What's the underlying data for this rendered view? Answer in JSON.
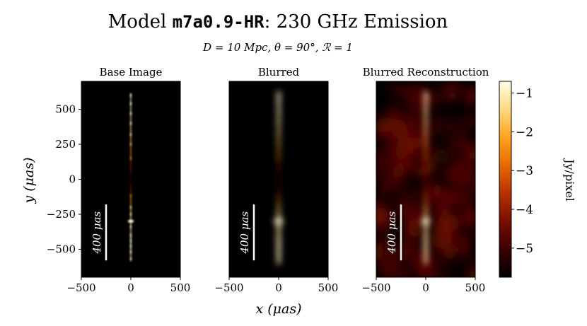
{
  "title": {
    "prefix": "Model ",
    "model": "m7a0.9-HR",
    "suffix": ": 230 GHz Emission"
  },
  "subtitle": "D = 10 Mpc, θ = 90°, ℛ = 1",
  "colors": {
    "background": "#ffffff",
    "panel_background": "#000000",
    "scale_bar": "#ffffff",
    "colormap": [
      "#000000",
      "#3a0000",
      "#7a0d00",
      "#b83000",
      "#e66a00",
      "#ffa320",
      "#ffd980",
      "#ffffe8"
    ]
  },
  "chart_data": {
    "type": "heatmap",
    "colormap": "afmhot",
    "xlabel": "x (μas)",
    "ylabel": "y (μas)",
    "xlim": [
      -500,
      500
    ],
    "ylim": [
      -700,
      700
    ],
    "x_ticks": [
      -500,
      0,
      500
    ],
    "x_tick_labels": [
      "−500",
      "0",
      "500"
    ],
    "y_ticks": [
      500,
      250,
      0,
      -250,
      -500
    ],
    "y_tick_labels": [
      "500",
      "250",
      "0",
      "−250",
      "−500"
    ],
    "scale_bar": {
      "length": 400,
      "label": "400 μas"
    },
    "colorbar": {
      "label": "Jy/pixel",
      "range": [
        -5.75,
        -0.7
      ],
      "ticks": [
        -1,
        -2,
        -3,
        -4,
        -5
      ],
      "tick_labels": [
        "−1",
        "−2",
        "−3",
        "−4",
        "−5"
      ],
      "scale": "log10"
    },
    "panels": [
      {
        "title": "Base Image",
        "jet_knots": [
          {
            "y": 600,
            "w": 8,
            "level": -0.9
          },
          {
            "y": 540,
            "w": 7,
            "level": -1.0
          },
          {
            "y": 470,
            "w": 7,
            "level": -1.1
          },
          {
            "y": 400,
            "w": 6,
            "level": -1.2
          },
          {
            "y": 320,
            "w": 5,
            "level": -1.4
          },
          {
            "y": 250,
            "w": 4,
            "level": -2.0
          },
          {
            "y": 150,
            "w": 3,
            "level": -2.8
          },
          {
            "y": 50,
            "w": 4,
            "level": -5.0
          },
          {
            "y": -50,
            "w": 4,
            "level": -5.0
          },
          {
            "y": -120,
            "w": 3,
            "level": -3.0
          },
          {
            "y": -200,
            "w": 4,
            "level": -1.6
          },
          {
            "y": -250,
            "w": 5,
            "level": -1.3
          },
          {
            "y": -300,
            "w": 60,
            "level": -0.9
          },
          {
            "y": -340,
            "w": 10,
            "level": -1.2
          },
          {
            "y": -400,
            "w": 14,
            "level": -1.1
          },
          {
            "y": -440,
            "w": 16,
            "level": -1.0
          },
          {
            "y": -480,
            "w": 14,
            "level": -1.1
          },
          {
            "y": -520,
            "w": 12,
            "level": -1.0
          },
          {
            "y": -570,
            "w": 10,
            "level": -1.2
          }
        ],
        "noise": 0
      },
      {
        "title": "Blurred",
        "jet_knots": [
          {
            "y": 610,
            "w": 35,
            "level": -0.9
          },
          {
            "y": 560,
            "w": 33,
            "level": -1.0
          },
          {
            "y": 480,
            "w": 30,
            "level": -1.1
          },
          {
            "y": 400,
            "w": 28,
            "level": -1.3
          },
          {
            "y": 320,
            "w": 25,
            "level": -1.5
          },
          {
            "y": 250,
            "w": 22,
            "level": -1.9
          },
          {
            "y": 150,
            "w": 18,
            "level": -2.6
          },
          {
            "y": 50,
            "w": 15,
            "level": -5.0
          },
          {
            "y": -50,
            "w": 15,
            "level": -5.0
          },
          {
            "y": -130,
            "w": 18,
            "level": -3.0
          },
          {
            "y": -200,
            "w": 25,
            "level": -1.8
          },
          {
            "y": -250,
            "w": 28,
            "level": -1.4
          },
          {
            "y": -300,
            "w": 90,
            "level": -1.0
          },
          {
            "y": -350,
            "w": 35,
            "level": -1.3
          },
          {
            "y": -420,
            "w": 38,
            "level": -1.2
          },
          {
            "y": -480,
            "w": 40,
            "level": -1.1
          },
          {
            "y": -540,
            "w": 38,
            "level": -1.1
          },
          {
            "y": -590,
            "w": 35,
            "level": -1.3
          }
        ],
        "noise": 0
      },
      {
        "title": "Blurred Reconstruction",
        "jet_knots": [
          {
            "y": 610,
            "w": 35,
            "level": -1.0
          },
          {
            "y": 560,
            "w": 33,
            "level": -1.1
          },
          {
            "y": 480,
            "w": 30,
            "level": -1.2
          },
          {
            "y": 400,
            "w": 28,
            "level": -1.4
          },
          {
            "y": 320,
            "w": 25,
            "level": -1.7
          },
          {
            "y": 250,
            "w": 22,
            "level": -2.2
          },
          {
            "y": 150,
            "w": 18,
            "level": -3.0
          },
          {
            "y": 50,
            "w": 15,
            "level": -4.3
          },
          {
            "y": -50,
            "w": 15,
            "level": -4.3
          },
          {
            "y": -130,
            "w": 18,
            "level": -3.0
          },
          {
            "y": -200,
            "w": 25,
            "level": -1.9
          },
          {
            "y": -250,
            "w": 28,
            "level": -1.5
          },
          {
            "y": -300,
            "w": 90,
            "level": -1.1
          },
          {
            "y": -350,
            "w": 35,
            "level": -1.4
          },
          {
            "y": -420,
            "w": 38,
            "level": -1.3
          },
          {
            "y": -480,
            "w": 40,
            "level": -1.2
          },
          {
            "y": -540,
            "w": 38,
            "level": -1.2
          },
          {
            "y": -590,
            "w": 35,
            "level": -1.4
          }
        ],
        "extra_blobs": [
          {
            "x": 150,
            "y": 160,
            "w": 20,
            "level": -3.4
          },
          {
            "x": 270,
            "y": 600,
            "w": 35,
            "level": -4.2
          },
          {
            "x": -250,
            "y": 200,
            "w": 60,
            "level": -4.6
          },
          {
            "x": 200,
            "y": -250,
            "w": 50,
            "level": -4.5
          }
        ],
        "noise": 1
      }
    ]
  }
}
